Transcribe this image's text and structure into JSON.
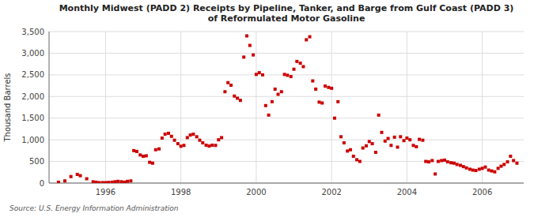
{
  "chart_data": {
    "type": "scatter",
    "title": "Monthly Midwest (PADD 2) Receipts by Pipeline, Tanker, and Barge from Gulf Coast (PADD 3)\nof Reformulated Motor Gasoline",
    "ylabel": "Thousand Barrels",
    "source": "Source: U.S. Energy Information Administration",
    "color": "#cc0000",
    "marker": "square",
    "grid": true,
    "xlim": [
      1994.5,
      2007.1
    ],
    "xticks": [
      1996,
      1998,
      2000,
      2002,
      2004,
      2006
    ],
    "ylim": [
      0,
      3500
    ],
    "yticks": [
      0,
      500,
      {
        "value": 1000,
        "label": "1,000"
      },
      {
        "value": 1500,
        "label": "1,500"
      },
      {
        "value": 2000,
        "label": "2,000"
      },
      {
        "value": 2500,
        "label": "2,500"
      },
      {
        "value": 3000,
        "label": "3,000"
      },
      {
        "value": 3500,
        "label": "3,500"
      }
    ],
    "x": [
      1994.75,
      1994.92,
      1995.08,
      1995.25,
      1995.33,
      1995.5,
      1995.67,
      1995.75,
      1995.83,
      1995.92,
      1996.0,
      1996.08,
      1996.17,
      1996.25,
      1996.33,
      1996.42,
      1996.5,
      1996.58,
      1996.67,
      1996.75,
      1996.83,
      1996.92,
      1997.0,
      1997.08,
      1997.17,
      1997.25,
      1997.33,
      1997.42,
      1997.5,
      1997.58,
      1997.67,
      1997.75,
      1997.83,
      1997.92,
      1998.0,
      1998.08,
      1998.17,
      1998.25,
      1998.33,
      1998.42,
      1998.5,
      1998.58,
      1998.67,
      1998.75,
      1998.83,
      1998.92,
      1999.0,
      1999.08,
      1999.17,
      1999.25,
      1999.33,
      1999.42,
      1999.5,
      1999.58,
      1999.67,
      1999.75,
      1999.83,
      1999.92,
      2000.0,
      2000.08,
      2000.17,
      2000.25,
      2000.33,
      2000.42,
      2000.5,
      2000.58,
      2000.67,
      2000.75,
      2000.83,
      2000.92,
      2001.0,
      2001.08,
      2001.17,
      2001.25,
      2001.33,
      2001.42,
      2001.5,
      2001.58,
      2001.67,
      2001.75,
      2001.83,
      2001.92,
      2002.0,
      2002.08,
      2002.17,
      2002.25,
      2002.33,
      2002.42,
      2002.5,
      2002.58,
      2002.67,
      2002.75,
      2002.83,
      2002.92,
      2003.0,
      2003.08,
      2003.17,
      2003.25,
      2003.33,
      2003.42,
      2003.5,
      2003.58,
      2003.67,
      2003.75,
      2003.83,
      2003.92,
      2004.0,
      2004.08,
      2004.17,
      2004.25,
      2004.33,
      2004.42,
      2004.5,
      2004.58,
      2004.67,
      2004.75,
      2004.83,
      2004.92,
      2005.0,
      2005.08,
      2005.17,
      2005.25,
      2005.33,
      2005.42,
      2005.5,
      2005.58,
      2005.67,
      2005.75,
      2005.83,
      2005.92,
      2006.0,
      2006.08,
      2006.17,
      2006.25,
      2006.33,
      2006.42,
      2006.5,
      2006.58,
      2006.67,
      2006.75,
      2006.83,
      2006.92
    ],
    "values": [
      20,
      50,
      150,
      200,
      170,
      100,
      30,
      20,
      10,
      10,
      10,
      15,
      20,
      30,
      40,
      30,
      20,
      40,
      50,
      750,
      730,
      650,
      620,
      630,
      480,
      460,
      770,
      790,
      1040,
      1130,
      1150,
      1080,
      990,
      910,
      850,
      870,
      1050,
      1110,
      1130,
      1070,
      990,
      930,
      875,
      855,
      875,
      870,
      1000,
      1050,
      2110,
      2320,
      2260,
      2010,
      1960,
      1910,
      2910,
      3400,
      3180,
      2960,
      2510,
      2550,
      2500,
      1790,
      1570,
      1880,
      2170,
      2050,
      2110,
      2510,
      2490,
      2460,
      2630,
      2810,
      2770,
      2690,
      3310,
      3380,
      2360,
      2170,
      1870,
      1850,
      2240,
      2210,
      2190,
      1500,
      1880,
      1070,
      930,
      740,
      770,
      620,
      540,
      500,
      810,
      860,
      960,
      910,
      710,
      1570,
      1170,
      970,
      1030,
      870,
      1060,
      830,
      1070,
      980,
      1040,
      1000,
      870,
      840,
      1010,
      990,
      500,
      490,
      520,
      210,
      500,
      520,
      530,
      490,
      470,
      460,
      430,
      410,
      380,
      350,
      320,
      300,
      290,
      320,
      340,
      370,
      300,
      280,
      260,
      340,
      390,
      430,
      490,
      620,
      520,
      460
    ]
  }
}
